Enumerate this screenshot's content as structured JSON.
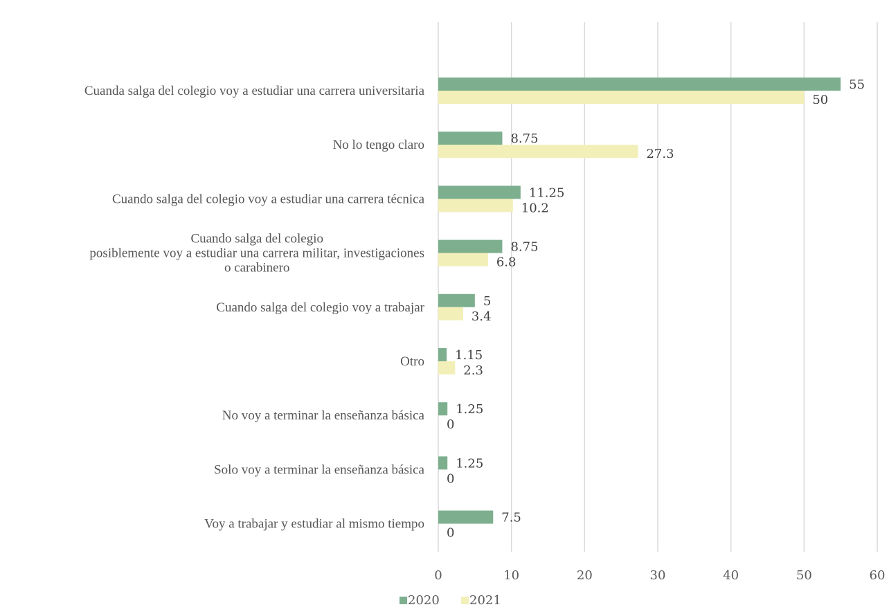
{
  "chart_data": {
    "type": "bar",
    "orientation": "horizontal",
    "categories": [
      "Cuanda salga del colegio voy a estudiar una carrera universitaria",
      "No lo tengo claro",
      "Cuando salga del colegio voy a estudiar una carrera técnica",
      "Cuando salga del colegio\nposiblemente voy a estudiar una carrera militar, investigaciones\no carabinero",
      "Cuando salga del colegio voy a trabajar",
      "Otro",
      "No voy a terminar la enseñanza básica",
      "Solo voy a terminar la enseñanza básica",
      "Voy a trabajar y estudiar al mismo tiempo"
    ],
    "series": [
      {
        "name": "2020",
        "color": "#7daf8f",
        "values": [
          55,
          8.75,
          11.25,
          8.75,
          5,
          1.15,
          1.25,
          1.25,
          7.5
        ]
      },
      {
        "name": "2021",
        "color": "#f2efb8",
        "values": [
          50,
          27.3,
          10.2,
          6.8,
          3.4,
          2.3,
          0,
          0,
          0
        ]
      }
    ],
    "xlim": [
      0,
      60
    ],
    "xticks": [
      "0",
      "10",
      "20",
      "30",
      "40",
      "50",
      "60"
    ],
    "grid": true,
    "legend_position": "bottom"
  }
}
